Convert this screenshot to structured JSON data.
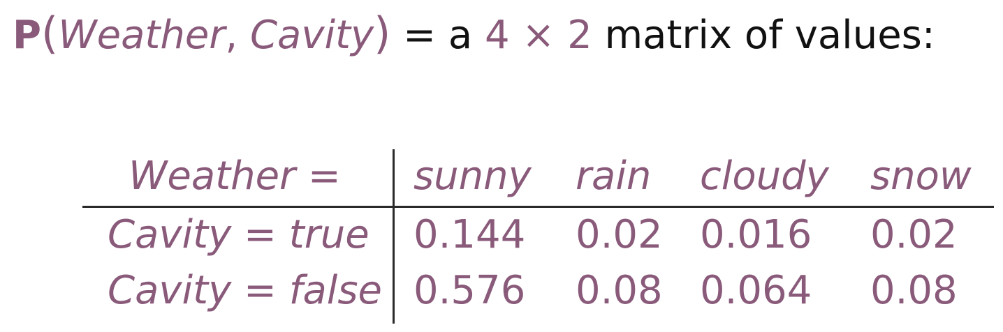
{
  "heading": {
    "bold_p": "P",
    "open_paren": "(",
    "var1": "Weather",
    "comma": ", ",
    "var2": "Cavity",
    "close_paren": ")",
    "equals_a": " = a ",
    "dims": "4 × 2",
    "rest": " matrix of values:"
  },
  "table": {
    "header_label": "Weather =",
    "columns": [
      "sunny",
      "rain",
      "cloudy",
      "snow"
    ],
    "rows": [
      {
        "label": "Cavity = true",
        "values": [
          "0.144",
          "0.02",
          "0.016",
          "0.02"
        ]
      },
      {
        "label": "Cavity = false",
        "values": [
          "0.576",
          "0.08",
          "0.064",
          "0.08"
        ]
      }
    ]
  },
  "colors": {
    "accent": "#8a5a7a",
    "text": "#111111",
    "rule": "#2a2a2a"
  }
}
